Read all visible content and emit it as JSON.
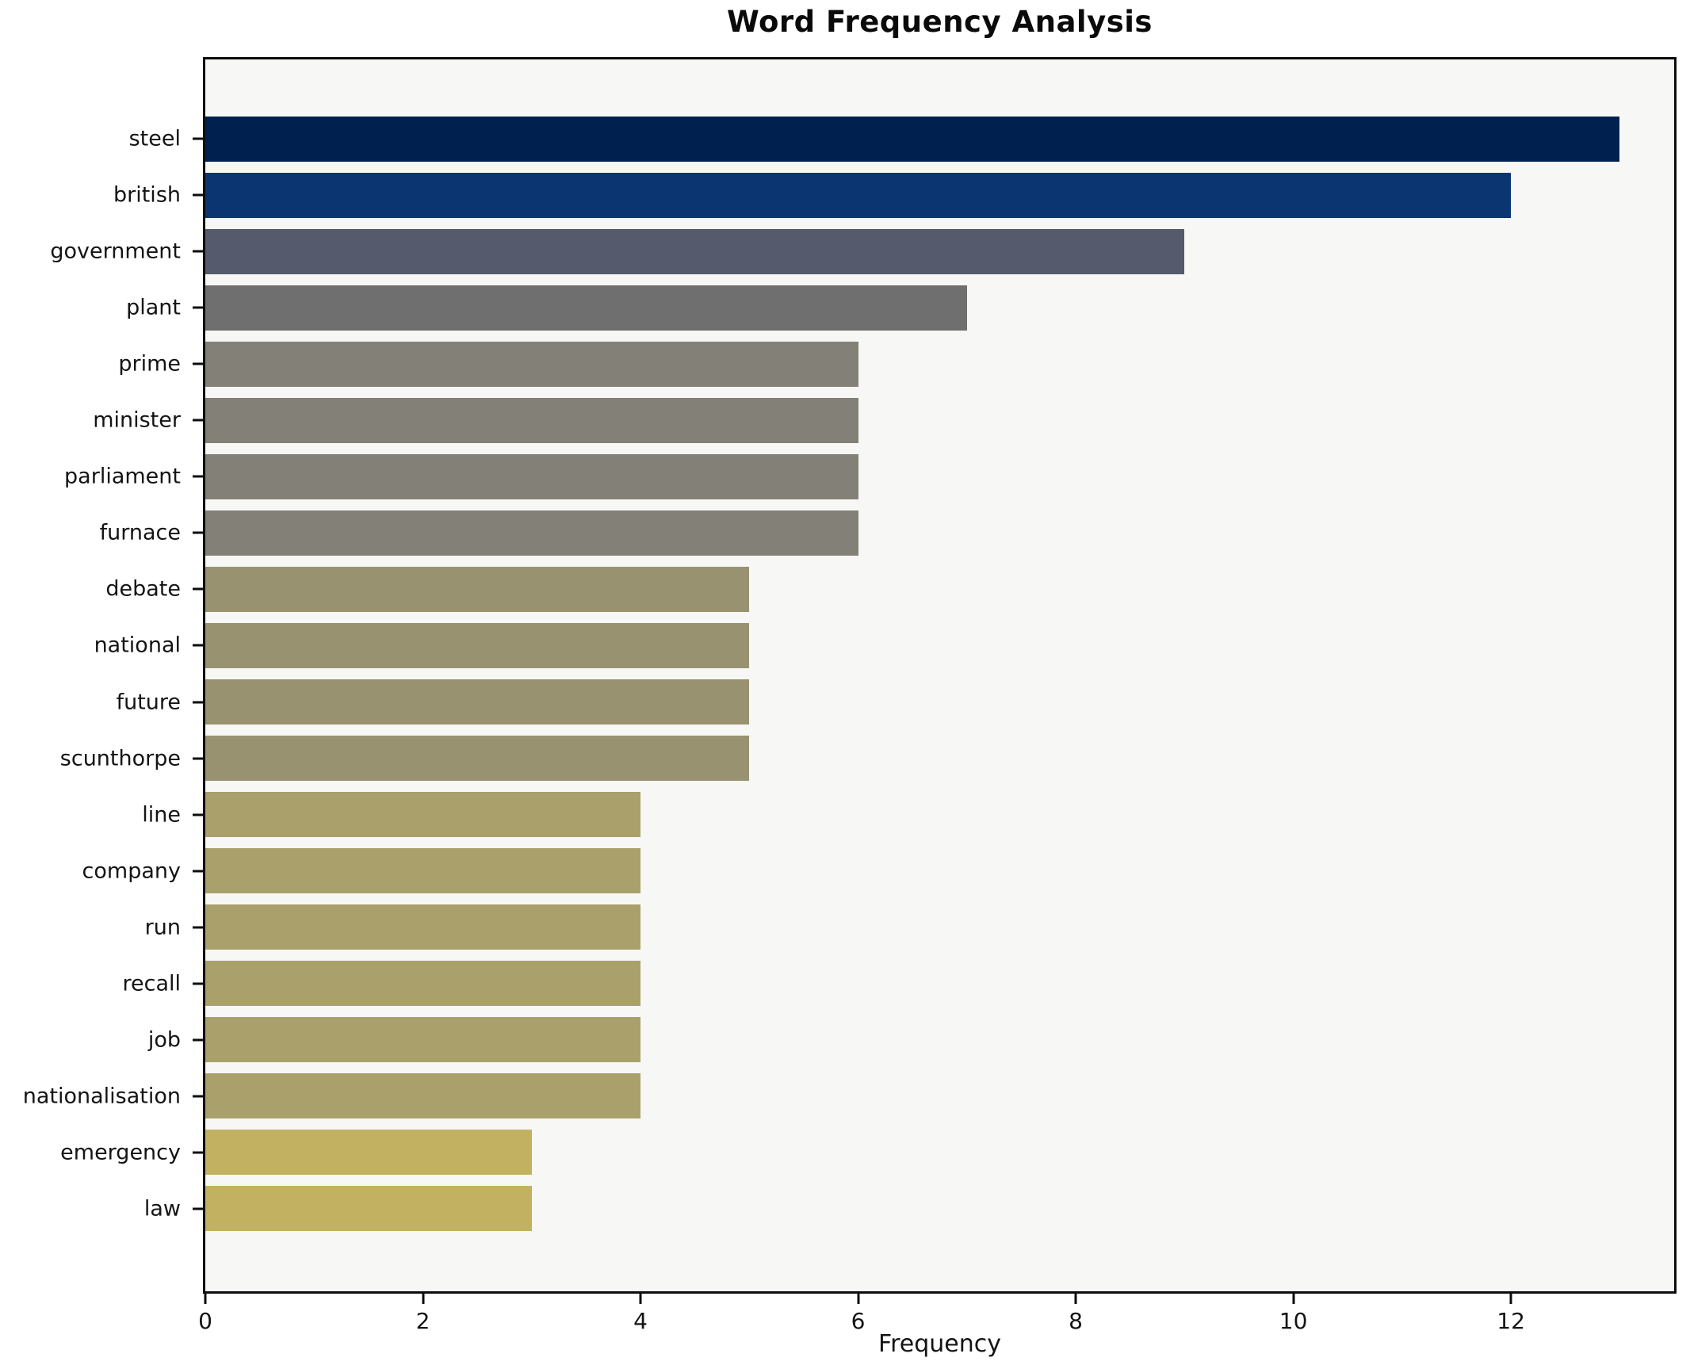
{
  "title": "Word Frequency Analysis",
  "chart_data": {
    "type": "bar",
    "orientation": "horizontal",
    "title": "Word Frequency Analysis",
    "xlabel": "Frequency",
    "ylabel": "",
    "xlim": [
      0,
      13.5
    ],
    "x_ticks": [
      0,
      2,
      4,
      6,
      8,
      10,
      12
    ],
    "grid": false,
    "legend": false,
    "colormap": "cividis",
    "plot_background": "#f7f7f5",
    "figure_background": "#ffffff",
    "spine_color": "#0d0d0d",
    "categories": [
      "steel",
      "british",
      "government",
      "plant",
      "prime",
      "minister",
      "parliament",
      "furnace",
      "debate",
      "national",
      "future",
      "scunthorpe",
      "line",
      "company",
      "run",
      "recall",
      "job",
      "nationalisation",
      "emergency",
      "law"
    ],
    "values": [
      13,
      12,
      9,
      7,
      6,
      6,
      6,
      6,
      5,
      5,
      5,
      5,
      4,
      4,
      4,
      4,
      4,
      4,
      3,
      3
    ],
    "bar_colors": [
      "#002150",
      "#0a3571",
      "#555a6c",
      "#706f6f",
      "#838078",
      "#838078",
      "#838078",
      "#838078",
      "#999270",
      "#999270",
      "#999270",
      "#999270",
      "#a9a06c",
      "#a9a06c",
      "#a9a06c",
      "#a9a06c",
      "#a9a06c",
      "#a9a06c",
      "#c3b162",
      "#c3b162"
    ]
  }
}
